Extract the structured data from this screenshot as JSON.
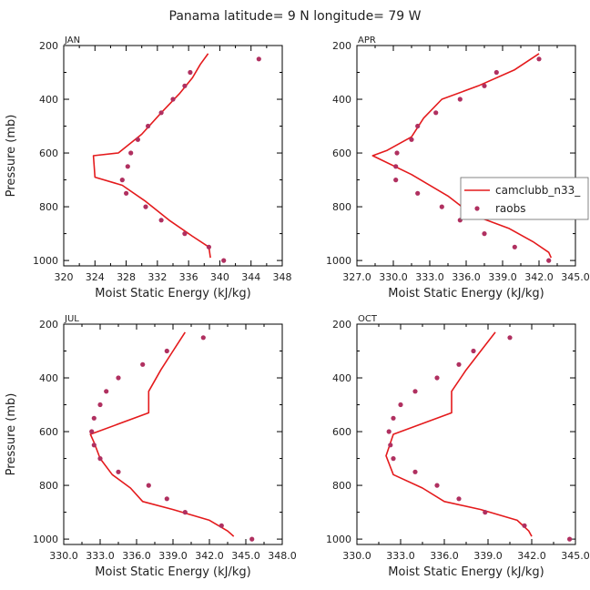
{
  "title": "Panama  latitude= 9 N longitude= 79 W",
  "colors": {
    "model": "#e41a1c",
    "obs": "#b03060",
    "axis": "#000000"
  },
  "legend": {
    "panel": 1,
    "entries": [
      {
        "label": "camclubb_n33_",
        "type": "line"
      },
      {
        "label": "raobs",
        "type": "marker"
      }
    ]
  },
  "chart_data": [
    {
      "type": "line",
      "panel_label": "JAN",
      "xlabel": "Moist Static Energy (kJ/kg)",
      "ylabel": "Pressure (mb)",
      "xlim": [
        320,
        348
      ],
      "ylim": [
        200,
        1020
      ],
      "y_inverted": true,
      "xticks": [
        "320",
        "324",
        "328",
        "332",
        "336",
        "340",
        "344",
        "348"
      ],
      "yticks": [
        "200",
        "400",
        "600",
        "800",
        "1000"
      ],
      "series": [
        {
          "name": "camclubb_n33_",
          "style": "line",
          "points": [
            [
              338.5,
              230
            ],
            [
              337.5,
              270
            ],
            [
              336.5,
              320
            ],
            [
              334.8,
              380
            ],
            [
              332.5,
              450
            ],
            [
              330,
              530
            ],
            [
              327,
              600
            ],
            [
              323.8,
              610
            ],
            [
              324,
              690
            ],
            [
              327.5,
              720
            ],
            [
              330.5,
              780
            ],
            [
              333.5,
              850
            ],
            [
              336.5,
              910
            ],
            [
              338.6,
              950
            ],
            [
              338.8,
              990
            ]
          ]
        },
        {
          "name": "raobs",
          "style": "marker",
          "points": [
            [
              345,
              250
            ],
            [
              336.2,
              300
            ],
            [
              335.5,
              350
            ],
            [
              334,
              400
            ],
            [
              332.5,
              450
            ],
            [
              330.8,
              500
            ],
            [
              329.5,
              550
            ],
            [
              328.6,
              600
            ],
            [
              328.2,
              650
            ],
            [
              327.5,
              700
            ],
            [
              328,
              750
            ],
            [
              330.5,
              800
            ],
            [
              332.5,
              850
            ],
            [
              335.5,
              900
            ],
            [
              338.6,
              950
            ],
            [
              340.5,
              1000
            ]
          ]
        }
      ]
    },
    {
      "type": "line",
      "panel_label": "APR",
      "xlabel": "Moist Static Energy (kJ/kg)",
      "ylabel": "",
      "xlim": [
        327,
        345
      ],
      "ylim": [
        200,
        1020
      ],
      "y_inverted": true,
      "xticks": [
        "327.0",
        "330.0",
        "333.0",
        "336.0",
        "339.0",
        "342.0",
        "345.0"
      ],
      "yticks": [
        "200",
        "400",
        "600",
        "800",
        "1000"
      ],
      "series": [
        {
          "name": "camclubb_n33_",
          "style": "line",
          "points": [
            [
              342,
              230
            ],
            [
              340,
              290
            ],
            [
              337,
              350
            ],
            [
              334,
              400
            ],
            [
              332.5,
              470
            ],
            [
              331.5,
              540
            ],
            [
              329.5,
              590
            ],
            [
              328.3,
              610
            ],
            [
              331.5,
              680
            ],
            [
              334.5,
              760
            ],
            [
              336.5,
              830
            ],
            [
              339.5,
              880
            ],
            [
              341.5,
              930
            ],
            [
              342.8,
              970
            ],
            [
              343,
              990
            ]
          ]
        },
        {
          "name": "raobs",
          "style": "marker",
          "points": [
            [
              342,
              250
            ],
            [
              338.5,
              300
            ],
            [
              337.5,
              350
            ],
            [
              335.5,
              400
            ],
            [
              333.5,
              450
            ],
            [
              332,
              500
            ],
            [
              331.5,
              550
            ],
            [
              330.3,
              600
            ],
            [
              330.2,
              650
            ],
            [
              330.2,
              700
            ],
            [
              332,
              750
            ],
            [
              334,
              800
            ],
            [
              335.5,
              850
            ],
            [
              337.5,
              900
            ],
            [
              340,
              950
            ],
            [
              342.8,
              1000
            ]
          ]
        }
      ]
    },
    {
      "type": "line",
      "panel_label": "JUL",
      "xlabel": "Moist Static Energy (kJ/kg)",
      "ylabel": "Pressure (mb)",
      "xlim": [
        330,
        348
      ],
      "ylim": [
        200,
        1020
      ],
      "y_inverted": true,
      "xticks": [
        "330.0",
        "333.0",
        "336.0",
        "339.0",
        "342.0",
        "345.0",
        "348.0"
      ],
      "yticks": [
        "200",
        "400",
        "600",
        "800",
        "1000"
      ],
      "series": [
        {
          "name": "camclubb_n33_",
          "style": "line",
          "points": [
            [
              340,
              230
            ],
            [
              339,
              300
            ],
            [
              338,
              370
            ],
            [
              337,
              450
            ],
            [
              337,
              530
            ],
            [
              332.2,
              610
            ],
            [
              332.5,
              640
            ],
            [
              333,
              700
            ],
            [
              334,
              760
            ],
            [
              335.5,
              810
            ],
            [
              336.5,
              860
            ],
            [
              339,
              890
            ],
            [
              342,
              930
            ],
            [
              343.5,
              970
            ],
            [
              344,
              990
            ]
          ]
        },
        {
          "name": "raobs",
          "style": "marker",
          "points": [
            [
              341.5,
              250
            ],
            [
              338.5,
              300
            ],
            [
              336.5,
              350
            ],
            [
              334.5,
              400
            ],
            [
              333.5,
              450
            ],
            [
              333,
              500
            ],
            [
              332.5,
              550
            ],
            [
              332.3,
              600
            ],
            [
              332.5,
              650
            ],
            [
              333,
              700
            ],
            [
              334.5,
              750
            ],
            [
              337,
              800
            ],
            [
              338.5,
              850
            ],
            [
              340,
              900
            ],
            [
              343,
              950
            ],
            [
              345.5,
              1000
            ]
          ]
        }
      ]
    },
    {
      "type": "line",
      "panel_label": "OCT",
      "xlabel": "Moist Static Energy (kJ/kg)",
      "ylabel": "",
      "xlim": [
        330,
        345
      ],
      "ylim": [
        200,
        1020
      ],
      "y_inverted": true,
      "xticks": [
        "330.0",
        "333.0",
        "336.0",
        "339.0",
        "342.0",
        "345.0"
      ],
      "yticks": [
        "200",
        "400",
        "600",
        "800",
        "1000"
      ],
      "series": [
        {
          "name": "camclubb_n33_",
          "style": "line",
          "points": [
            [
              339.5,
              230
            ],
            [
              338.5,
              300
            ],
            [
              337.5,
              370
            ],
            [
              336.5,
              450
            ],
            [
              336.5,
              530
            ],
            [
              332.5,
              610
            ],
            [
              332,
              690
            ],
            [
              332.5,
              760
            ],
            [
              334.5,
              810
            ],
            [
              336,
              860
            ],
            [
              338.5,
              890
            ],
            [
              341,
              930
            ],
            [
              341.8,
              970
            ],
            [
              342,
              990
            ]
          ]
        },
        {
          "name": "raobs",
          "style": "marker",
          "points": [
            [
              340.5,
              250
            ],
            [
              338,
              300
            ],
            [
              337,
              350
            ],
            [
              335.5,
              400
            ],
            [
              334,
              450
            ],
            [
              333,
              500
            ],
            [
              332.5,
              550
            ],
            [
              332.2,
              600
            ],
            [
              332.3,
              650
            ],
            [
              332.5,
              700
            ],
            [
              334,
              750
            ],
            [
              335.5,
              800
            ],
            [
              337,
              850
            ],
            [
              338.8,
              900
            ],
            [
              341.5,
              950
            ],
            [
              344.6,
              1000
            ]
          ]
        }
      ]
    }
  ]
}
